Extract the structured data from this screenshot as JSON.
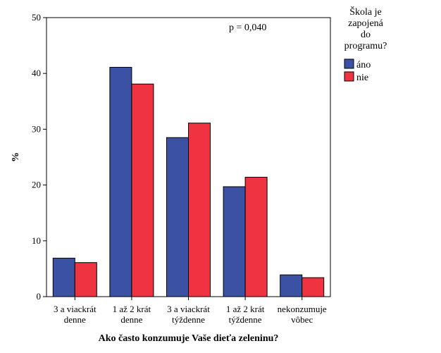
{
  "chart_data": {
    "type": "bar",
    "title": "",
    "xlabel": "Ako často konzumuje Vaše dieťa zeleninu?",
    "ylabel": "%",
    "ylim": [
      0,
      50
    ],
    "yticks": [
      0,
      10,
      20,
      30,
      40,
      50
    ],
    "grid": false,
    "legend_placement": "right",
    "legend_title": [
      "Škola je",
      "zapojená",
      "do",
      "programu?"
    ],
    "annotation": "p = 0,040",
    "categories": [
      [
        "3 a viackrát",
        "denne"
      ],
      [
        "1 až 2 krát",
        "denne"
      ],
      [
        "3 a viackrát",
        "týždenne"
      ],
      [
        "1 až 2 krát",
        "týždenne"
      ],
      [
        "nekonzumuje",
        "vôbec"
      ]
    ],
    "series": [
      {
        "name": "áno",
        "color": "#3b52a4",
        "values": [
          6.9,
          41.1,
          28.5,
          19.7,
          3.9
        ]
      },
      {
        "name": "nie",
        "color": "#ef3340",
        "values": [
          6.1,
          38.1,
          31.1,
          21.4,
          3.4
        ]
      }
    ]
  }
}
